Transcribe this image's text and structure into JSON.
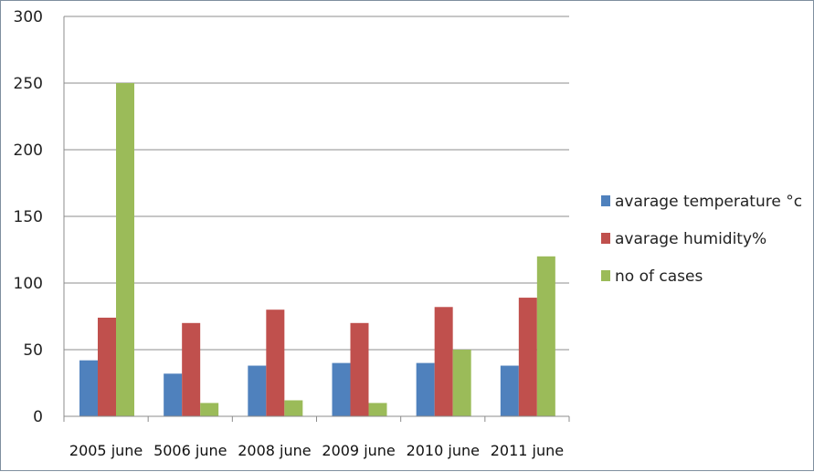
{
  "chart_data": {
    "type": "bar",
    "title": "",
    "xlabel": "",
    "ylabel": "",
    "ylim": [
      0,
      300
    ],
    "yticks": [
      "0",
      "50",
      "100",
      "150",
      "200",
      "250",
      "300"
    ],
    "grid": true,
    "legend_position": "right",
    "categories": [
      "2005 june",
      "5006 june",
      "2008 june",
      "2009 june",
      "2010 june",
      "2011 june"
    ],
    "series": [
      {
        "name": "avarage temperature °c",
        "color": "#4f81bd",
        "values": [
          42,
          32,
          38,
          40,
          40,
          38
        ]
      },
      {
        "name": "avarage humidity%",
        "color": "#c0504d",
        "values": [
          74,
          70,
          80,
          70,
          82,
          89
        ]
      },
      {
        "name": "no of cases",
        "color": "#9bbb59",
        "values": [
          250,
          10,
          12,
          10,
          50,
          120
        ]
      }
    ]
  }
}
